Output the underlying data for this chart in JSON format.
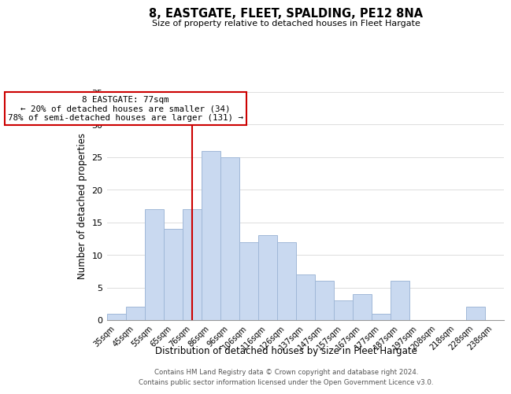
{
  "title": "8, EASTGATE, FLEET, SPALDING, PE12 8NA",
  "subtitle": "Size of property relative to detached houses in Fleet Hargate",
  "xlabel": "Distribution of detached houses by size in Fleet Hargate",
  "ylabel": "Number of detached properties",
  "bin_labels": [
    "35sqm",
    "45sqm",
    "55sqm",
    "65sqm",
    "76sqm",
    "86sqm",
    "96sqm",
    "106sqm",
    "116sqm",
    "126sqm",
    "137sqm",
    "147sqm",
    "157sqm",
    "167sqm",
    "177sqm",
    "187sqm",
    "197sqm",
    "208sqm",
    "218sqm",
    "228sqm",
    "238sqm"
  ],
  "bar_heights": [
    1,
    2,
    17,
    14,
    17,
    26,
    25,
    12,
    13,
    12,
    7,
    6,
    3,
    4,
    1,
    6,
    0,
    0,
    0,
    2,
    0
  ],
  "bar_color": "#c9d9f0",
  "bar_edge_color": "#a0b8d8",
  "vline_x_index": 4,
  "vline_color": "#cc0000",
  "annotation_text": "8 EASTGATE: 77sqm\n← 20% of detached houses are smaller (34)\n78% of semi-detached houses are larger (131) →",
  "annotation_box_color": "#ffffff",
  "annotation_box_edge_color": "#cc0000",
  "ylim": [
    0,
    35
  ],
  "yticks": [
    0,
    5,
    10,
    15,
    20,
    25,
    30,
    35
  ],
  "footer_line1": "Contains HM Land Registry data © Crown copyright and database right 2024.",
  "footer_line2": "Contains public sector information licensed under the Open Government Licence v3.0.",
  "background_color": "#ffffff",
  "grid_color": "#dddddd"
}
